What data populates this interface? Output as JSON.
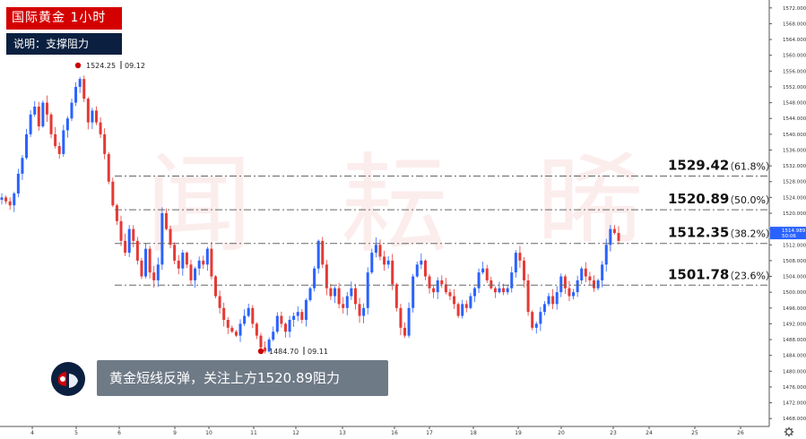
{
  "title": "国际黄金 1小时",
  "subtitle": "说明：支撑阻力",
  "comment": "黄金短线反弹，关注上方1520.89阻力",
  "watermark": "闻 耘 晞",
  "colors": {
    "up": "#2962ff",
    "down": "#e53935",
    "title_bg": "#d40000",
    "subtitle_bg": "#0b2040",
    "last_price": "#2962ff"
  },
  "chart_data": {
    "type": "candlestick",
    "ylim": [
      1466,
      1574
    ],
    "y_ticks": [
      "1468.000",
      "1472.000",
      "1476.000",
      "1480.000",
      "1484.000",
      "1488.000",
      "1492.000",
      "1496.000",
      "1500.000",
      "1504.000",
      "1508.000",
      "1512.000",
      "1516.000",
      "1520.000",
      "1524.000",
      "1528.000",
      "1532.000",
      "1536.000",
      "1540.000",
      "1544.000",
      "1548.000",
      "1552.000",
      "1556.000",
      "1560.000",
      "1564.000",
      "1568.000",
      "1572.000"
    ],
    "x_ticks": [
      "4",
      "5",
      "6",
      "9",
      "10",
      "11",
      "12",
      "13",
      "16",
      "17",
      "18",
      "19",
      "20",
      "23",
      "24",
      "25",
      "26"
    ],
    "last_price": {
      "value": "1514.989",
      "countdown": "50:06"
    },
    "markers": [
      {
        "label": "1524.25",
        "date": "09.12",
        "price": 1524.25
      },
      {
        "label": "1484.70",
        "date": "09.11",
        "price": 1484.7
      }
    ],
    "fib_levels": [
      {
        "price": 1529.42,
        "label": "1529.42",
        "pct": "（61.8%）"
      },
      {
        "price": 1520.89,
        "label": "1520.89",
        "pct": "（50.0%）"
      },
      {
        "price": 1512.35,
        "label": "1512.35",
        "pct": "（38.2%）"
      },
      {
        "price": 1501.78,
        "label": "1501.78",
        "pct": "（23.6%）"
      }
    ],
    "close_path": [
      1524,
      1523,
      1522,
      1525,
      1530,
      1534,
      1540,
      1545,
      1547,
      1542,
      1548,
      1545,
      1540,
      1537,
      1535,
      1541,
      1544,
      1548,
      1552,
      1554,
      1549,
      1543,
      1546,
      1543,
      1540,
      1535,
      1528,
      1522,
      1518,
      1513,
      1510,
      1516,
      1513,
      1508,
      1504,
      1511,
      1505,
      1503,
      1507,
      1520,
      1516,
      1512,
      1508,
      1506,
      1510,
      1507,
      1503,
      1506,
      1508,
      1507,
      1511,
      1504,
      1499,
      1496,
      1493,
      1491,
      1490,
      1489,
      1492,
      1494,
      1496,
      1492,
      1489,
      1486,
      1485,
      1488,
      1490,
      1494,
      1492,
      1490,
      1493,
      1494,
      1495,
      1493,
      1498,
      1501,
      1506,
      1513,
      1507,
      1501,
      1499,
      1501,
      1497,
      1496,
      1499,
      1501,
      1497,
      1494,
      1496,
      1505,
      1510,
      1512,
      1509,
      1507,
      1508,
      1502,
      1496,
      1491,
      1489,
      1496,
      1504,
      1507,
      1508,
      1504,
      1501,
      1500,
      1503,
      1502,
      1500,
      1499,
      1497,
      1494,
      1497,
      1496,
      1499,
      1501,
      1505,
      1506,
      1503,
      1501,
      1500,
      1501,
      1500,
      1501,
      1505,
      1510,
      1508,
      1503,
      1495,
      1491,
      1492,
      1495,
      1497,
      1499,
      1497,
      1500,
      1504,
      1501,
      1499,
      1500,
      1503,
      1506,
      1504,
      1503,
      1501,
      1503,
      1507,
      1512,
      1516,
      1515,
      1513
    ]
  }
}
